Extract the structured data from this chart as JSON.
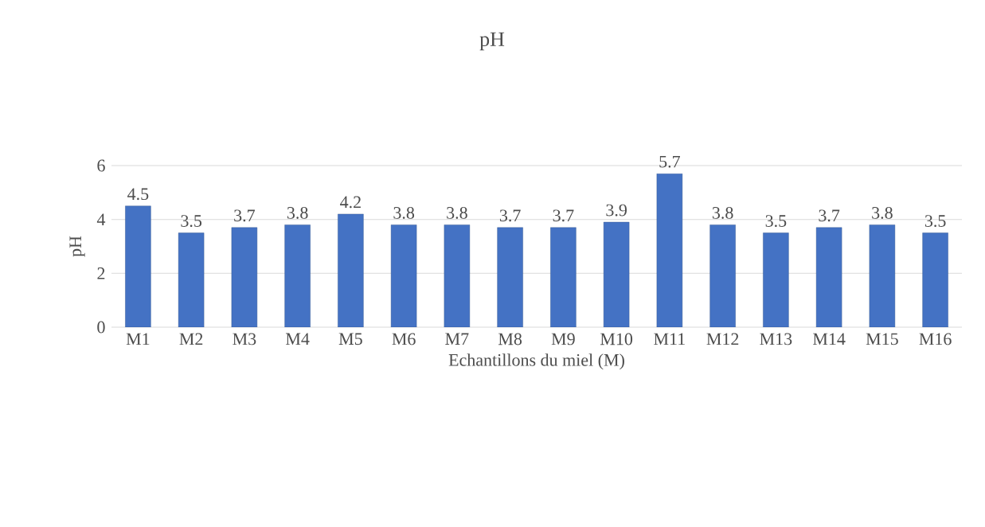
{
  "chart_data": {
    "type": "bar",
    "title": "pH",
    "xlabel": "Echantillons du miel (M)",
    "ylabel": "pH",
    "categories": [
      "M1",
      "M2",
      "M3",
      "M4",
      "M5",
      "M6",
      "M7",
      "M8",
      "M9",
      "M10",
      "M11",
      "M12",
      "M13",
      "M14",
      "M15",
      "M16"
    ],
    "values": [
      4.5,
      3.5,
      3.7,
      3.8,
      4.2,
      3.8,
      3.8,
      3.7,
      3.7,
      3.9,
      5.7,
      3.8,
      3.5,
      3.7,
      3.8,
      3.5
    ],
    "color": "#4472c4",
    "ylim": [
      0,
      6
    ],
    "yticks": [
      0,
      2,
      4,
      6
    ],
    "grid": "y",
    "data_labels": true
  }
}
